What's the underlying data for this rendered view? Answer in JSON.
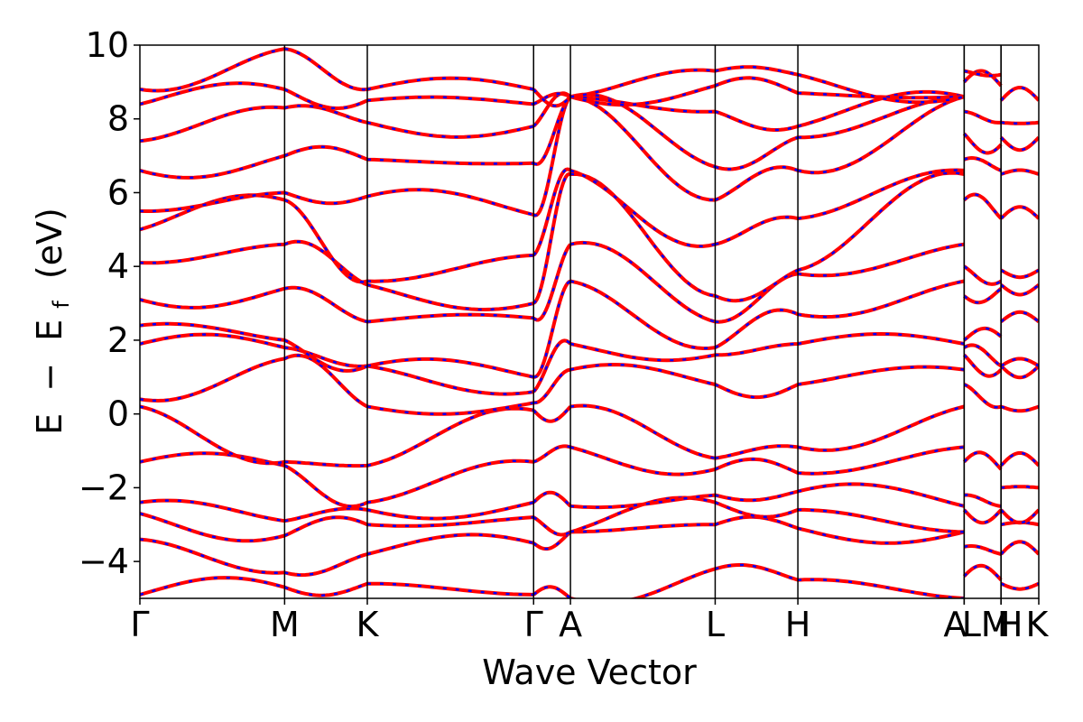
{
  "chart_data": {
    "type": "line",
    "xlabel": "Wave Vector",
    "ylabel": {
      "E": "E",
      "minus": "−",
      "Ef_main": "E",
      "Ef_sub": "f",
      "unit": "(eV)"
    },
    "ylim": [
      -5,
      10
    ],
    "yticks": [
      -4,
      -2,
      0,
      2,
      4,
      6,
      8,
      10
    ],
    "ytick_labels": [
      "−4",
      "−2",
      "0",
      "2",
      "4",
      "6",
      "8",
      "10"
    ],
    "high_symmetry_points": [
      {
        "label": "Γ",
        "k": 0.0
      },
      {
        "label": "M",
        "k": 0.161
      },
      {
        "label": "K",
        "k": 0.253
      },
      {
        "label": "Γ",
        "k": 0.438
      },
      {
        "label": "A",
        "k": 0.479
      },
      {
        "label": "L",
        "k": 0.64
      },
      {
        "label": "H",
        "k": 0.732
      },
      {
        "label": "A",
        "k": 0.917
      },
      {
        "label": "L",
        "k": 0.917
      },
      {
        "label": "M",
        "k": 0.958
      },
      {
        "label": "H",
        "k": 0.958
      },
      {
        "label": "K",
        "k": 1.0
      }
    ],
    "xlim": [
      0,
      1
    ],
    "grid": false,
    "series": [
      {
        "color": "#ff0000",
        "style": "solid"
      },
      {
        "color": "#0000ff",
        "style": "dashed"
      }
    ],
    "bands_at_points": [
      [
        -4.9,
        -3.4,
        -2.7,
        -2.4,
        -1.3,
        0.2,
        0.4,
        1.9,
        2.4,
        3.1,
        4.1,
        5.0,
        5.5,
        6.6,
        7.4,
        8.4,
        8.8
      ],
      [
        -4.7,
        -4.3,
        -3.3,
        -2.9,
        -1.4,
        -1.3,
        1.5,
        1.8,
        2.0,
        3.4,
        4.6,
        5.8,
        6.0,
        7.0,
        8.3,
        8.8,
        9.9
      ],
      [
        -4.6,
        -3.8,
        -3.0,
        -2.6,
        -2.4,
        -1.4,
        0.2,
        1.3,
        1.3,
        2.5,
        3.5,
        3.6,
        5.9,
        6.9,
        7.9,
        8.5,
        8.8
      ],
      [
        -4.9,
        -3.5,
        -2.8,
        -2.4,
        -1.3,
        0.1,
        0.3,
        0.6,
        1.0,
        2.6,
        3.0,
        4.3,
        5.4,
        6.8,
        7.8,
        8.4,
        8.8
      ],
      [
        -5.0,
        -3.2,
        -3.2,
        -2.5,
        -0.9,
        0.2,
        1.2,
        1.9,
        3.6,
        4.6,
        6.5,
        6.6,
        8.6,
        8.6,
        8.6,
        8.6,
        8.6
      ],
      [
        -4.2,
        -3.0,
        -2.4,
        -2.2,
        -1.5,
        -1.2,
        0.8,
        1.6,
        1.8,
        2.5,
        3.2,
        4.6,
        5.8,
        6.7,
        8.2,
        8.9,
        9.3
      ],
      [
        -4.5,
        -3.1,
        -2.6,
        -2.1,
        -1.6,
        -0.9,
        0.8,
        1.9,
        2.7,
        3.8,
        3.9,
        5.3,
        6.6,
        7.5,
        7.8,
        8.7,
        9.2
      ],
      [
        -5.0,
        -3.2,
        -3.2,
        -2.5,
        -0.9,
        0.2,
        1.2,
        1.9,
        3.6,
        4.6,
        6.5,
        6.6,
        8.6,
        8.6,
        8.6,
        8.6,
        8.6
      ],
      [
        -4.4,
        -3.6,
        -2.6,
        -2.2,
        -1.3,
        0.8,
        1.6,
        1.8,
        2.0,
        3.2,
        4.0,
        5.8,
        6.9,
        7.6,
        8.2,
        9.0,
        9.3
      ],
      [
        -4.5,
        -3.8,
        -2.6,
        -2.5,
        -1.5,
        0.2,
        1.2,
        1.3,
        2.1,
        3.4,
        3.6,
        5.3,
        6.6,
        7.3,
        7.9,
        8.9,
        9.2
      ],
      [
        -4.6,
        -3.8,
        -3.0,
        -2.6,
        -2.0,
        -1.4,
        0.2,
        1.3,
        1.3,
        2.5,
        3.5,
        3.9,
        5.3,
        6.5,
        7.5,
        7.9,
        8.5
      ],
      [
        -4.6,
        -3.8,
        -3.0,
        -2.6,
        -2.0,
        -1.4,
        0.2,
        1.3,
        1.3,
        2.5,
        3.5,
        3.9,
        5.3,
        6.5,
        7.5,
        7.9,
        8.5
      ]
    ]
  }
}
